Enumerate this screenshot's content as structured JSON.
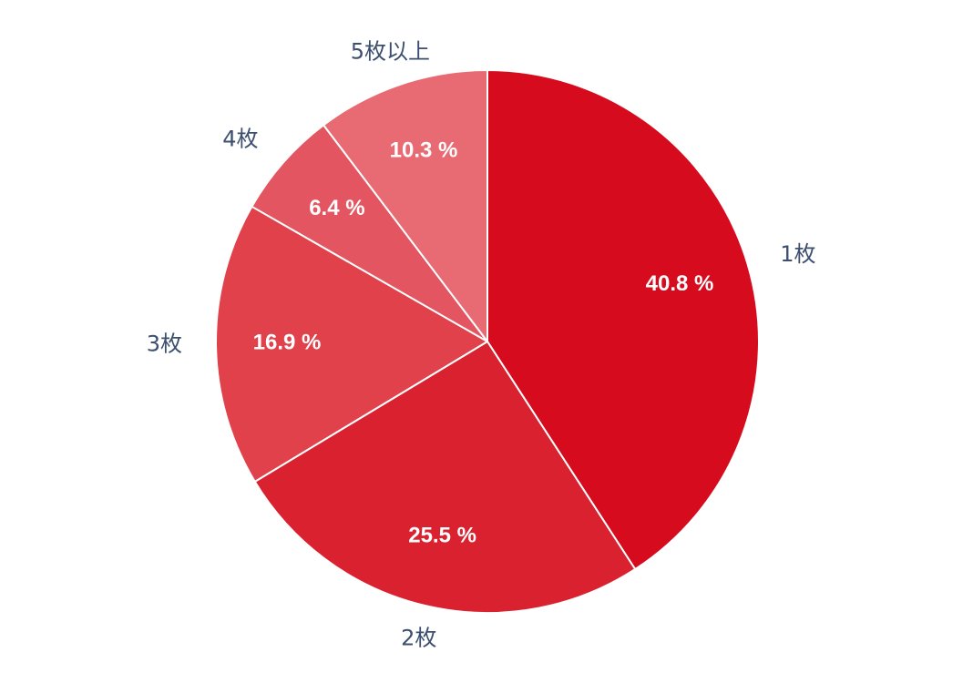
{
  "chart_data": {
    "type": "pie",
    "categories": [
      "1枚",
      "2枚",
      "3枚",
      "4枚",
      "5枚以上"
    ],
    "values": [
      40.8,
      25.5,
      16.9,
      6.4,
      10.3
    ],
    "data_labels": [
      "40.8 %",
      "25.5 %",
      "16.9 %",
      "6.4 %",
      "10.3 %"
    ],
    "colors": [
      "#d60b1e",
      "#da2130",
      "#e0414b",
      "#e35560",
      "#e86b73"
    ],
    "label_color": "#3d4f6e",
    "start_angle": "12 o'clock",
    "direction": "clockwise",
    "title": "",
    "legend": "none"
  }
}
